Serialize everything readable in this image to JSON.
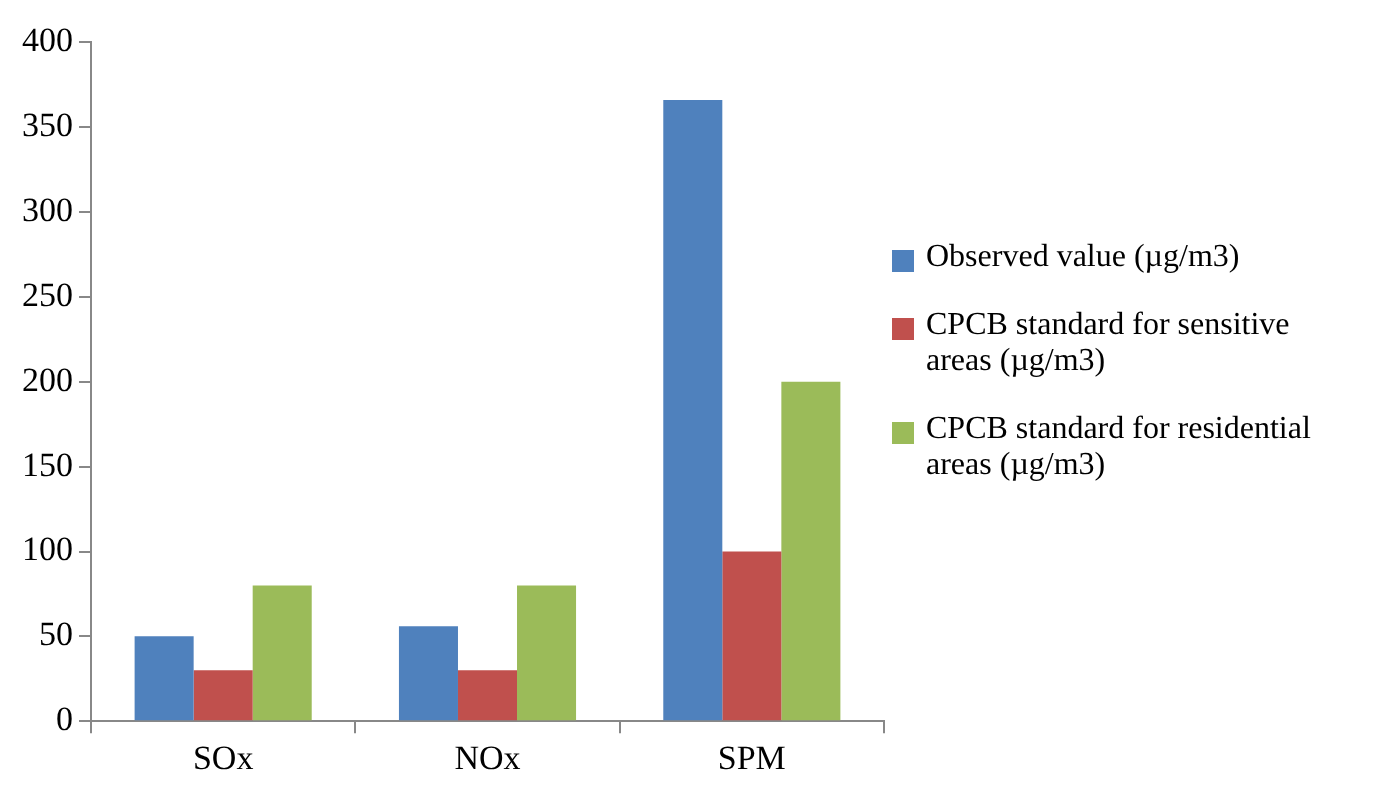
{
  "chart_data": {
    "type": "bar",
    "categories": [
      "SOx",
      "NOx",
      "SPM"
    ],
    "series": [
      {
        "name": "Observed value (µg/m3)",
        "color": "#4f81bd",
        "values": [
          50,
          56,
          366
        ]
      },
      {
        "name": "CPCB standard for sensitive areas (µg/m3)",
        "color": "#c0504d",
        "values": [
          30,
          30,
          100
        ]
      },
      {
        "name": "CPCB standard for residential areas (µg/m3)",
        "color": "#9bbb59",
        "values": [
          80,
          80,
          200
        ]
      }
    ],
    "ylim": [
      0,
      400
    ],
    "yticks": [
      0,
      50,
      100,
      150,
      200,
      250,
      300,
      350,
      400
    ],
    "grid": false,
    "legend": "right"
  }
}
